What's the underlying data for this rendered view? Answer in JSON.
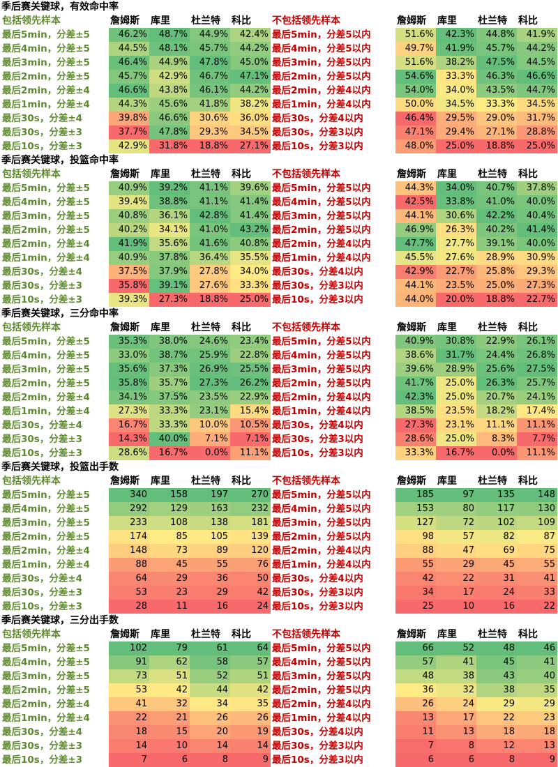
{
  "columns": [
    "詹姆斯",
    "库里",
    "杜兰特",
    "科比"
  ],
  "header_included": "包括领先样本",
  "header_excluded": "不包括领先样本",
  "chart_data": [
    {
      "type": "heatmap",
      "title": "季后赛关键球，有效命中率",
      "columns": [
        "詹姆斯",
        "库里",
        "杜兰特",
        "科比"
      ],
      "rows_included": [
        "最后5min，分差±5",
        "最后4min，分差±5",
        "最后3min，分差±5",
        "最后2min，分差±5",
        "最后2min，分差±4",
        "最后1min，分差±4",
        "最后30s，分差±4",
        "最后30s，分差±3",
        "最后10s，分差±3"
      ],
      "rows_excluded": [
        "最后5min，分差5以内",
        "最后4min，分差5以内",
        "最后3min，分差5以内",
        "最后2min，分差5以内",
        "最后2min，分差4以内",
        "最后1min，分差4以内",
        "最后30s，分差4以内",
        "最后30s，分差3以内",
        "最后10s，分差3以内"
      ],
      "values_included": [
        [
          "46.2%",
          "48.7%",
          "44.9%",
          "42.4%"
        ],
        [
          "44.5%",
          "48.1%",
          "45.7%",
          "44.2%"
        ],
        [
          "46.4%",
          "44.9%",
          "47.8%",
          "45.0%"
        ],
        [
          "45.7%",
          "42.9%",
          "46.7%",
          "47.1%"
        ],
        [
          "46.6%",
          "43.8%",
          "46.1%",
          "44.2%"
        ],
        [
          "44.3%",
          "45.6%",
          "41.8%",
          "38.2%"
        ],
        [
          "39.8%",
          "46.6%",
          "30.6%",
          "36.0%"
        ],
        [
          "37.7%",
          "47.8%",
          "29.3%",
          "34.5%"
        ],
        [
          "42.9%",
          "31.8%",
          "18.8%",
          "27.1%"
        ]
      ],
      "values_excluded": [
        [
          "51.6%",
          "42.3%",
          "44.8%",
          "41.9%"
        ],
        [
          "49.7%",
          "41.9%",
          "45.7%",
          "44.2%"
        ],
        [
          "51.6%",
          "38.2%",
          "47.5%",
          "44.5%"
        ],
        [
          "54.6%",
          "33.3%",
          "46.3%",
          "46.6%"
        ],
        [
          "54.0%",
          "34.0%",
          "43.5%",
          "44.7%"
        ],
        [
          "50.0%",
          "34.5%",
          "33.3%",
          "34.5%"
        ],
        [
          "46.4%",
          "29.5%",
          "29.0%",
          "31.7%"
        ],
        [
          "47.1%",
          "29.4%",
          "27.1%",
          "28.8%"
        ],
        [
          "48.0%",
          "25.0%",
          "18.8%",
          "25.0%"
        ]
      ]
    },
    {
      "type": "heatmap",
      "title": "季后赛关键球，投篮命中率",
      "columns": [
        "詹姆斯",
        "库里",
        "杜兰特",
        "科比"
      ],
      "rows_included": [
        "最后5min，分差±5",
        "最后4min，分差±5",
        "最后3min，分差±5",
        "最后2min，分差±5",
        "最后2min，分差±4",
        "最后1min，分差±4",
        "最后30s，分差±4",
        "最后30s，分差±3",
        "最后10s，分差±3"
      ],
      "rows_excluded": [
        "最后5min，分差5以内",
        "最后4min，分差5以内",
        "最后3min，分差5以内",
        "最后2min，分差5以内",
        "最后2min，分差4以内",
        "最后1min，分差4以内",
        "最后30s，分差4以内",
        "最后30s，分差3以内",
        "最后10s，分差3以内"
      ],
      "values_included": [
        [
          "40.9%",
          "39.2%",
          "41.1%",
          "39.6%"
        ],
        [
          "39.4%",
          "38.8%",
          "41.1%",
          "41.4%"
        ],
        [
          "40.8%",
          "36.1%",
          "42.8%",
          "41.4%"
        ],
        [
          "40.2%",
          "34.1%",
          "41.0%",
          "43.2%"
        ],
        [
          "41.9%",
          "35.6%",
          "41.6%",
          "40.8%"
        ],
        [
          "40.9%",
          "37.8%",
          "36.4%",
          "35.5%"
        ],
        [
          "37.5%",
          "37.9%",
          "27.8%",
          "34.0%"
        ],
        [
          "35.8%",
          "39.1%",
          "27.6%",
          "33.3%"
        ],
        [
          "39.3%",
          "27.3%",
          "18.8%",
          "25.0%"
        ]
      ],
      "values_excluded": [
        [
          "44.3%",
          "34.0%",
          "40.7%",
          "37.8%"
        ],
        [
          "42.5%",
          "33.8%",
          "41.0%",
          "40.0%"
        ],
        [
          "44.1%",
          "30.6%",
          "42.2%",
          "40.4%"
        ],
        [
          "46.9%",
          "26.3%",
          "40.2%",
          "41.4%"
        ],
        [
          "47.7%",
          "27.7%",
          "39.1%",
          "40.0%"
        ],
        [
          "45.5%",
          "27.6%",
          "28.9%",
          "30.9%"
        ],
        [
          "42.9%",
          "22.7%",
          "25.8%",
          "29.3%"
        ],
        [
          "44.1%",
          "23.5%",
          "25.0%",
          "27.3%"
        ],
        [
          "44.0%",
          "20.0%",
          "18.8%",
          "22.7%"
        ]
      ]
    },
    {
      "type": "heatmap",
      "title": "季后赛关键球，三分命中率",
      "columns": [
        "詹姆斯",
        "库里",
        "杜兰特",
        "科比"
      ],
      "rows_included": [
        "最后5min，分差±5",
        "最后4min，分差±5",
        "最后3min，分差±5",
        "最后2min，分差±5",
        "最后2min，分差±4",
        "最后1min，分差±4",
        "最后30s，分差±4",
        "最后30s，分差±3",
        "最后10s，分差±3"
      ],
      "rows_excluded": [
        "最后5min，分差5以内",
        "最后4min，分差5以内",
        "最后3min，分差5以内",
        "最后2min，分差5以内",
        "最后2min，分差4以内",
        "最后1min，分差4以内",
        "最后30s，分差4以内",
        "最后30s，分差3以内",
        "最后10s，分差3以内"
      ],
      "values_included": [
        [
          "35.3%",
          "38.0%",
          "24.6%",
          "23.4%"
        ],
        [
          "33.0%",
          "38.7%",
          "25.9%",
          "22.8%"
        ],
        [
          "35.6%",
          "37.3%",
          "26.9%",
          "25.5%"
        ],
        [
          "35.8%",
          "35.7%",
          "27.3%",
          "26.2%"
        ],
        [
          "34.1%",
          "37.5%",
          "23.5%",
          "22.9%"
        ],
        [
          "27.3%",
          "33.3%",
          "23.1%",
          "15.4%"
        ],
        [
          "16.7%",
          "33.3%",
          "10.0%",
          "10.5%"
        ],
        [
          "14.3%",
          "40.0%",
          "7.1%",
          "7.1%"
        ],
        [
          "28.6%",
          "16.7%",
          "0.0%",
          "11.1%"
        ]
      ],
      "values_excluded": [
        [
          "40.9%",
          "30.8%",
          "22.9%",
          "26.1%"
        ],
        [
          "38.6%",
          "31.7%",
          "24.4%",
          "26.8%"
        ],
        [
          "39.6%",
          "28.9%",
          "25.6%",
          "27.5%"
        ],
        [
          "41.7%",
          "25.0%",
          "26.3%",
          "25.7%"
        ],
        [
          "42.3%",
          "25.0%",
          "20.7%",
          "24.1%"
        ],
        [
          "38.5%",
          "23.5%",
          "18.2%",
          "17.4%"
        ],
        [
          "27.3%",
          "23.1%",
          "11.1%",
          "11.1%"
        ],
        [
          "28.6%",
          "25.0%",
          "8.3%",
          "7.7%"
        ],
        [
          "33.3%",
          "16.7%",
          "0.0%",
          "11.1%"
        ]
      ]
    },
    {
      "type": "heatmap",
      "title": "季后赛关键球，投篮出手数",
      "columns": [
        "詹姆斯",
        "库里",
        "杜兰特",
        "科比"
      ],
      "rows_included": [
        "最后5min，分差±5",
        "最后4min，分差±5",
        "最后3min，分差±5",
        "最后2min，分差±5",
        "最后2min，分差±4",
        "最后1min，分差±4",
        "最后30s，分差±4",
        "最后30s，分差±3",
        "最后10s，分差±3"
      ],
      "rows_excluded": [
        "最后5min，分差5以内",
        "最后4min，分差5以内",
        "最后3min，分差5以内",
        "最后2min，分差5以内",
        "最后2min，分差4以内",
        "最后1min，分差4以内",
        "最后30s，分差4以内",
        "最后30s，分差3以内",
        "最后10s，分差3以内"
      ],
      "values_included": [
        [
          "340",
          "158",
          "197",
          "270"
        ],
        [
          "292",
          "129",
          "163",
          "232"
        ],
        [
          "233",
          "108",
          "138",
          "181"
        ],
        [
          "174",
          "85",
          "105",
          "139"
        ],
        [
          "148",
          "73",
          "89",
          "120"
        ],
        [
          "88",
          "45",
          "55",
          "76"
        ],
        [
          "64",
          "29",
          "36",
          "50"
        ],
        [
          "53",
          "23",
          "29",
          "42"
        ],
        [
          "28",
          "11",
          "16",
          "24"
        ]
      ],
      "values_excluded": [
        [
          "185",
          "97",
          "135",
          "148"
        ],
        [
          "153",
          "80",
          "117",
          "130"
        ],
        [
          "127",
          "72",
          "102",
          "109"
        ],
        [
          "98",
          "57",
          "82",
          "87"
        ],
        [
          "88",
          "47",
          "69",
          "75"
        ],
        [
          "55",
          "29",
          "45",
          "55"
        ],
        [
          "42",
          "22",
          "31",
          "41"
        ],
        [
          "34",
          "17",
          "24",
          "33"
        ],
        [
          "25",
          "10",
          "16",
          "22"
        ]
      ]
    },
    {
      "type": "heatmap",
      "title": "季后赛关键球，三分出手数",
      "columns": [
        "詹姆斯",
        "库里",
        "杜兰特",
        "科比"
      ],
      "rows_included": [
        "最后5min，分差±5",
        "最后4min，分差±5",
        "最后3min，分差±5",
        "最后2min，分差±5",
        "最后2min，分差±4",
        "最后1min，分差±4",
        "最后30s，分差±4",
        "最后30s，分差±3",
        "最后10s，分差±3"
      ],
      "rows_excluded": [
        "最后5min，分差5以内",
        "最后4min，分差5以内",
        "最后3min，分差5以内",
        "最后2min，分差5以内",
        "最后2min，分差4以内",
        "最后1min，分差4以内",
        "最后30s，分差4以内",
        "最后30s，分差3以内",
        "最后10s，分差3以内"
      ],
      "values_included": [
        [
          "102",
          "79",
          "61",
          "64"
        ],
        [
          "91",
          "62",
          "58",
          "57"
        ],
        [
          "73",
          "51",
          "52",
          "51"
        ],
        [
          "53",
          "42",
          "44",
          "42"
        ],
        [
          "41",
          "32",
          "34",
          "35"
        ],
        [
          "22",
          "21",
          "26",
          "26"
        ],
        [
          "18",
          "15",
          "20",
          "19"
        ],
        [
          "14",
          "10",
          "14",
          "14"
        ],
        [
          "7",
          "6",
          "8",
          "9"
        ]
      ],
      "values_excluded": [
        [
          "66",
          "52",
          "48",
          "46"
        ],
        [
          "57",
          "41",
          "45",
          "41"
        ],
        [
          "48",
          "38",
          "43",
          "40"
        ],
        [
          "36",
          "32",
          "38",
          "35"
        ],
        [
          "26",
          "24",
          "29",
          "29"
        ],
        [
          "13",
          "17",
          "22",
          "23"
        ],
        [
          "11",
          "13",
          "18",
          "18"
        ],
        [
          "7",
          "8",
          "12",
          "13"
        ],
        [
          "6",
          "6",
          "8",
          "9"
        ]
      ]
    }
  ]
}
